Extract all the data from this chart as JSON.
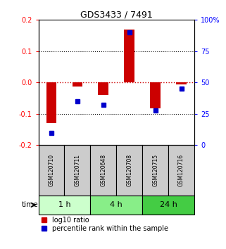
{
  "title": "GDS3433 / 7491",
  "samples": [
    "GSM120710",
    "GSM120711",
    "GSM120648",
    "GSM120708",
    "GSM120715",
    "GSM120716"
  ],
  "log10_ratio": [
    -0.13,
    -0.012,
    -0.04,
    0.17,
    -0.082,
    -0.005
  ],
  "percentile_rank": [
    10,
    35,
    32,
    90,
    28,
    45
  ],
  "ylim_left": [
    -0.2,
    0.2
  ],
  "ylim_right": [
    0,
    100
  ],
  "yticks_left": [
    -0.2,
    -0.1,
    0.0,
    0.1,
    0.2
  ],
  "yticks_right": [
    0,
    25,
    50,
    75,
    100
  ],
  "ytick_labels_right": [
    "0",
    "25",
    "50",
    "75",
    "100%"
  ],
  "hlines_dotted_black": [
    -0.1,
    0.1
  ],
  "hline_red": 0.0,
  "bar_color": "#cc0000",
  "square_color": "#0000cc",
  "zero_line_color": "#cc0000",
  "time_groups": [
    {
      "label": "1 h",
      "samples": [
        0,
        1
      ],
      "color": "#ccffcc"
    },
    {
      "label": "4 h",
      "samples": [
        2,
        3
      ],
      "color": "#88ee88"
    },
    {
      "label": "24 h",
      "samples": [
        4,
        5
      ],
      "color": "#44cc44"
    }
  ],
  "legend_red_label": "log10 ratio",
  "legend_blue_label": "percentile rank within the sample",
  "time_label": "time",
  "bg_sample_color": "#cccccc",
  "figsize": [
    3.21,
    3.54
  ],
  "dpi": 100
}
